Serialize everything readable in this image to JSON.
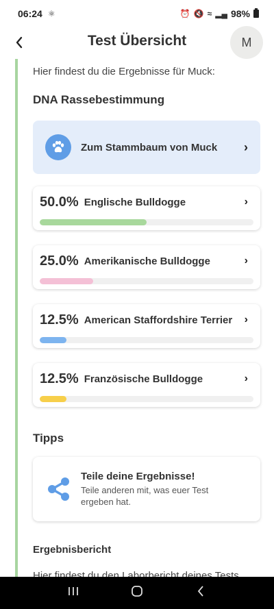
{
  "status_bar": {
    "time": "06:24",
    "battery": "98%"
  },
  "header": {
    "title": "Test Übersicht",
    "avatar_initial": "M"
  },
  "intro_text": "Hier findest du die Ergebnisse für Muck:",
  "dna": {
    "section_title": "DNA Rassebestimmung",
    "pedigree_label": "Zum Stammbaum von Muck",
    "breeds": [
      {
        "percent": "50.0%",
        "name": "Englische Bulldogge",
        "fraction": 0.5,
        "color": "#a8d89c"
      },
      {
        "percent": "25.0%",
        "name": "Amerikanische Bulldogge",
        "fraction": 0.25,
        "color": "#f4c0d6"
      },
      {
        "percent": "12.5%",
        "name": "American Staffordshire Terrier",
        "fraction": 0.125,
        "color": "#7db4ef"
      },
      {
        "percent": "12.5%",
        "name": "Französische Bulldogge",
        "fraction": 0.125,
        "color": "#f7cf4a"
      }
    ]
  },
  "tips": {
    "section_title": "Tipps",
    "share_title": "Teile deine Ergebnisse!",
    "share_subtitle": "Teile anderen mit, was euer Test ergeben hat."
  },
  "report": {
    "section_title": "Ergebnisbericht",
    "text": "Hier findest du den Laborbericht deines Tests"
  },
  "colors": {
    "accent_blue": "#5f9de6",
    "timeline_green": "#a8d5a0",
    "pedigree_bg": "#e4edfa"
  }
}
